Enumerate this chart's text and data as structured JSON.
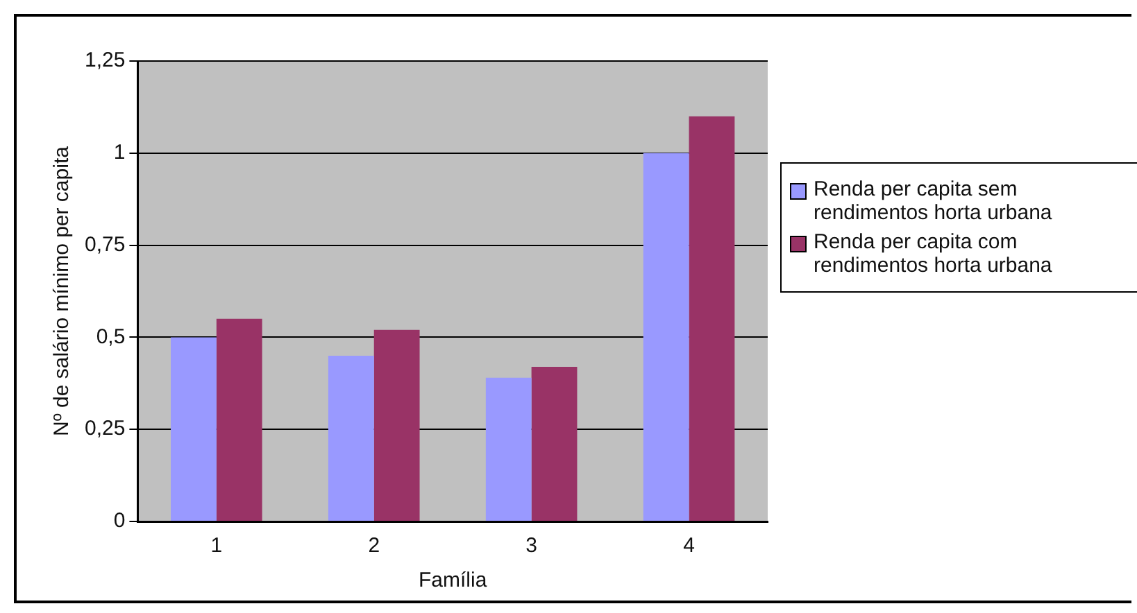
{
  "chart_data": {
    "type": "bar",
    "xlabel": "Família",
    "ylabel": "Nº de salário mínimo per capita",
    "categories": [
      "1",
      "2",
      "3",
      "4"
    ],
    "series": [
      {
        "name": "Renda per capita sem rendimentos horta urbana",
        "color": "#9999ff",
        "values": [
          0.5,
          0.45,
          0.39,
          1.0
        ]
      },
      {
        "name": "Renda per capita com rendimentos horta urbana",
        "color": "#993366",
        "values": [
          0.55,
          0.52,
          0.42,
          1.1
        ]
      }
    ],
    "ylim": [
      0,
      1.25
    ],
    "yticks": [
      0,
      {
        "value": 0.25,
        "label": "0,25"
      },
      {
        "value": 0.5,
        "label": "0,5"
      },
      {
        "value": 0.75,
        "label": "0,75"
      },
      1,
      {
        "value": 1.25,
        "label": "1,25"
      }
    ],
    "grid": "y",
    "legend": "right"
  }
}
